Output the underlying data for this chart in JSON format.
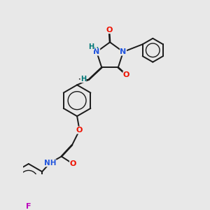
{
  "background_color": "#e8e8e8",
  "bond_color": "#1a1a1a",
  "atom_colors": {
    "O": "#ee1100",
    "N": "#2255dd",
    "F": "#bb00bb",
    "H": "#007777",
    "C": "#1a1a1a"
  },
  "figsize": [
    3.0,
    3.0
  ],
  "dpi": 100
}
